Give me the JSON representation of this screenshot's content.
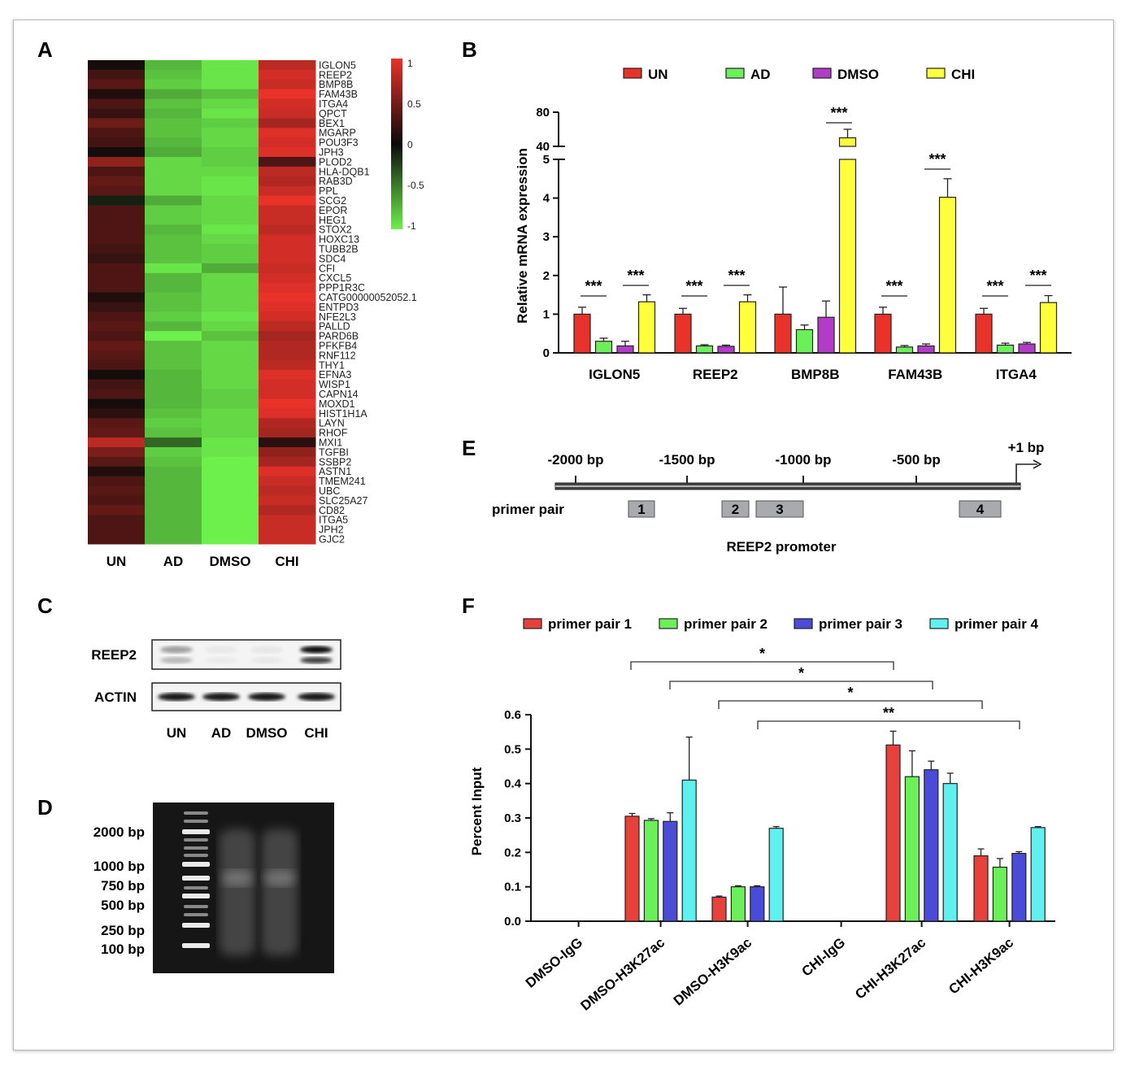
{
  "panels": {
    "A": {
      "letter": "A",
      "columns": [
        "UN",
        "AD",
        "DMSO",
        "CHI"
      ],
      "genes": [
        "IGLON5",
        "REEP2",
        "BMP8B",
        "FAM43B",
        "ITGA4",
        "QPCT",
        "BEX1",
        "MGARP",
        "POU3F3",
        "JPH3",
        "PLOD2",
        "HLA-DQB1",
        "RAB3D",
        "PPL",
        "SCG2",
        "EPOR",
        "HEG1",
        "STOX2",
        "HOXC13",
        "TUBB2B",
        "SDC4",
        "CFI",
        "CXCL5",
        "PPP1R3C",
        "CATG00000052052.1",
        "ENTPD3",
        "NFE2L3",
        "PALLD",
        "PARD6B",
        "PFKFB4",
        "RNF112",
        "THY1",
        "EFNA3",
        "WISP1",
        "CAPN14",
        "MOXD1",
        "HIST1H1A",
        "LAYN",
        "RHOF",
        "MXI1",
        "TGFBI",
        "SSBP2",
        "ASTN1",
        "TMEM241",
        "UBC",
        "SLC25A27",
        "CD82",
        "ITGA5",
        "JPH2",
        "GJC2"
      ],
      "colorbar_ticks": [
        "1",
        "0.5",
        "0",
        "-0.5",
        "-1"
      ],
      "colors": {
        "high": "#e8322a",
        "mid": "#0a0a0a",
        "low": "#6ef04c"
      }
    },
    "B": {
      "letter": "B",
      "significance": "***"
    },
    "C": {
      "letter": "C",
      "rows": [
        "REEP2",
        "ACTIN"
      ],
      "lanes": [
        "UN",
        "AD",
        "DMSO",
        "CHI"
      ]
    },
    "D": {
      "letter": "D",
      "ladder": [
        "2000 bp",
        "1000 bp",
        "750 bp",
        "500 bp",
        "250 bp",
        "100 bp"
      ]
    },
    "E": {
      "letter": "E",
      "positions": [
        "-2000 bp",
        "-1500 bp",
        "-1000 bp",
        "-500 bp"
      ],
      "tss": "+1 bp",
      "primer_label": "primer pair",
      "primers": [
        "1",
        "2",
        "3",
        "4"
      ],
      "caption": "REEP2 promoter"
    },
    "F": {
      "letter": "F",
      "brackets": [
        "*",
        "*",
        "*",
        "**"
      ]
    }
  },
  "chart_data": [
    {
      "type": "heatmap",
      "panel": "A",
      "x": [
        "UN",
        "AD",
        "DMSO",
        "CHI"
      ],
      "y": [
        "IGLON5",
        "REEP2",
        "BMP8B",
        "FAM43B",
        "ITGA4",
        "QPCT",
        "BEX1",
        "MGARP",
        "POU3F3",
        "JPH3",
        "PLOD2",
        "HLA-DQB1",
        "RAB3D",
        "PPL",
        "SCG2",
        "EPOR",
        "HEG1",
        "STOX2",
        "HOXC13",
        "TUBB2B",
        "SDC4",
        "CFI",
        "CXCL5",
        "PPP1R3C",
        "CATG00000052052.1",
        "ENTPD3",
        "NFE2L3",
        "PALLD",
        "PARD6B",
        "PFKFB4",
        "RNF112",
        "THY1",
        "EFNA3",
        "WISP1",
        "CAPN14",
        "MOXD1",
        "HIST1H1A",
        "LAYN",
        "RHOF",
        "MXI1",
        "TGFBI",
        "SSBP2",
        "ASTN1",
        "TMEM241",
        "UBC",
        "SLC25A27",
        "CD82",
        "ITGA5",
        "JPH2",
        "GJC2"
      ],
      "values": [
        [
          0.05,
          -0.75,
          -0.95,
          0.8
        ],
        [
          0.25,
          -0.8,
          -0.95,
          0.9
        ],
        [
          0.35,
          -0.85,
          -0.95,
          0.85
        ],
        [
          0.1,
          -0.7,
          -0.8,
          1.0
        ],
        [
          0.3,
          -0.8,
          -0.9,
          0.9
        ],
        [
          0.2,
          -0.75,
          -0.95,
          0.85
        ],
        [
          0.45,
          -0.8,
          -0.85,
          0.7
        ],
        [
          0.3,
          -0.8,
          -0.9,
          0.95
        ],
        [
          0.25,
          -0.75,
          -0.9,
          0.9
        ],
        [
          0.05,
          -0.7,
          -0.85,
          0.95
        ],
        [
          0.6,
          -0.9,
          -0.85,
          0.3
        ],
        [
          0.3,
          -0.9,
          -0.9,
          0.8
        ],
        [
          0.4,
          -0.9,
          -0.95,
          0.75
        ],
        [
          0.35,
          -0.9,
          -0.95,
          0.85
        ],
        [
          -0.1,
          -0.7,
          -0.9,
          1.0
        ],
        [
          0.3,
          -0.85,
          -0.9,
          0.85
        ],
        [
          0.3,
          -0.85,
          -0.9,
          0.85
        ],
        [
          0.3,
          -0.75,
          -0.95,
          0.8
        ],
        [
          0.3,
          -0.8,
          -0.9,
          0.9
        ],
        [
          0.25,
          -0.8,
          -0.85,
          0.9
        ],
        [
          0.2,
          -0.8,
          -0.85,
          0.9
        ],
        [
          0.3,
          -0.95,
          -0.7,
          0.85
        ],
        [
          0.3,
          -0.75,
          -0.9,
          0.9
        ],
        [
          0.3,
          -0.75,
          -0.9,
          0.95
        ],
        [
          0.1,
          -0.8,
          -0.9,
          1.0
        ],
        [
          0.2,
          -0.8,
          -0.9,
          0.95
        ],
        [
          0.3,
          -0.85,
          -0.95,
          0.9
        ],
        [
          0.35,
          -0.75,
          -0.9,
          0.8
        ],
        [
          0.3,
          -1.0,
          -0.8,
          0.7
        ],
        [
          0.4,
          -0.8,
          -0.9,
          0.75
        ],
        [
          0.35,
          -0.8,
          -0.9,
          0.75
        ],
        [
          0.3,
          -0.8,
          -0.9,
          0.8
        ],
        [
          0.05,
          -0.75,
          -0.9,
          0.95
        ],
        [
          0.25,
          -0.75,
          -0.9,
          0.9
        ],
        [
          0.3,
          -0.75,
          -0.85,
          0.9
        ],
        [
          0.05,
          -0.75,
          -0.85,
          1.0
        ],
        [
          0.15,
          -0.8,
          -0.9,
          0.95
        ],
        [
          0.35,
          -0.85,
          -0.9,
          0.75
        ],
        [
          0.4,
          -0.8,
          -0.9,
          0.7
        ],
        [
          0.8,
          -0.4,
          -0.95,
          0.15
        ],
        [
          0.5,
          -0.85,
          -0.95,
          0.6
        ],
        [
          0.35,
          -0.8,
          -1.0,
          0.7
        ],
        [
          0.1,
          -0.75,
          -1.0,
          0.95
        ],
        [
          0.3,
          -0.75,
          -1.0,
          0.85
        ],
        [
          0.35,
          -0.75,
          -1.0,
          0.8
        ],
        [
          0.3,
          -0.75,
          -1.0,
          0.85
        ],
        [
          0.4,
          -0.75,
          -1.0,
          0.75
        ],
        [
          0.3,
          -0.75,
          -1.0,
          0.85
        ],
        [
          0.3,
          -0.75,
          -1.0,
          0.85
        ],
        [
          0.3,
          -0.75,
          -1.0,
          0.85
        ]
      ],
      "colorbar": [
        -1,
        1
      ]
    },
    {
      "type": "bar",
      "panel": "B",
      "categories": [
        "IGLON5",
        "REEP2",
        "BMP8B",
        "FAM43B",
        "ITGA4"
      ],
      "series": [
        {
          "name": "UN",
          "color": "#e8322a",
          "values": [
            1.0,
            1.0,
            1.0,
            1.0,
            1.0
          ],
          "errors": [
            0.18,
            0.15,
            0.7,
            0.18,
            0.15
          ]
        },
        {
          "name": "AD",
          "color": "#6cf05a",
          "values": [
            0.3,
            0.18,
            0.6,
            0.15,
            0.2
          ],
          "errors": [
            0.08,
            0.03,
            0.12,
            0.04,
            0.05
          ]
        },
        {
          "name": "DMSO",
          "color": "#b23cc8",
          "values": [
            0.18,
            0.17,
            0.92,
            0.18,
            0.23
          ],
          "errors": [
            0.12,
            0.03,
            0.42,
            0.05,
            0.04
          ]
        },
        {
          "name": "CHI",
          "color": "#ffff3c",
          "values": [
            1.32,
            1.32,
            50,
            4.02,
            1.3
          ],
          "errors": [
            0.18,
            0.18,
            10,
            0.48,
            0.18
          ]
        }
      ],
      "ylabel": "Relative mRNA expression",
      "y_lower_ticks": [
        0,
        1,
        2,
        3,
        4,
        5
      ],
      "y_upper_ticks": [
        40,
        80
      ],
      "axis_break": [
        5,
        40
      ],
      "significance": [
        {
          "category": "IGLON5",
          "pair": [
            "UN",
            "AD"
          ],
          "label": "***"
        },
        {
          "category": "IGLON5",
          "pair": [
            "DMSO",
            "CHI"
          ],
          "label": "***"
        },
        {
          "category": "REEP2",
          "pair": [
            "UN",
            "AD"
          ],
          "label": "***"
        },
        {
          "category": "REEP2",
          "pair": [
            "DMSO",
            "CHI"
          ],
          "label": "***"
        },
        {
          "category": "BMP8B",
          "pair": [
            "DMSO",
            "CHI"
          ],
          "label": "***"
        },
        {
          "category": "FAM43B",
          "pair": [
            "UN",
            "AD"
          ],
          "label": "***"
        },
        {
          "category": "FAM43B",
          "pair": [
            "DMSO",
            "CHI"
          ],
          "label": "***"
        },
        {
          "category": "ITGA4",
          "pair": [
            "UN",
            "AD"
          ],
          "label": "***"
        },
        {
          "category": "ITGA4",
          "pair": [
            "DMSO",
            "CHI"
          ],
          "label": "***"
        }
      ],
      "legend": "top"
    },
    {
      "type": "bar",
      "panel": "F",
      "categories": [
        "DMSO-IgG",
        "DMSO-H3K27ac",
        "DMSO-H3K9ac",
        "CHI-IgG",
        "CHI-H3K27ac",
        "CHI-H3K9ac"
      ],
      "series": [
        {
          "name": "primer pair 1",
          "color": "#e8403a",
          "values": [
            0,
            0.305,
            0.07,
            0,
            0.512,
            0.19
          ],
          "errors": [
            0,
            0.008,
            0.003,
            0,
            0.04,
            0.02
          ]
        },
        {
          "name": "primer pair 2",
          "color": "#6cf05a",
          "values": [
            0,
            0.293,
            0.1,
            0,
            0.42,
            0.157
          ],
          "errors": [
            0,
            0.005,
            0.003,
            0,
            0.075,
            0.025
          ]
        },
        {
          "name": "primer pair 3",
          "color": "#4a4cd8",
          "values": [
            0,
            0.29,
            0.1,
            0,
            0.44,
            0.197
          ],
          "errors": [
            0,
            0.025,
            0.003,
            0,
            0.025,
            0.005
          ]
        },
        {
          "name": "primer pair 4",
          "color": "#5ff0f0",
          "values": [
            0,
            0.41,
            0.27,
            0,
            0.4,
            0.272
          ],
          "errors": [
            0,
            0.125,
            0.005,
            0,
            0.03,
            0.003
          ]
        }
      ],
      "ylabel": "Percent Input",
      "ylim": [
        0,
        0.6
      ],
      "yticks": [
        0.0,
        0.1,
        0.2,
        0.3,
        0.4,
        0.5,
        0.6
      ],
      "yticklabels": [
        "0.0",
        "0.1",
        "0.2",
        "0.3",
        "0.4",
        "0.5",
        "0.6"
      ],
      "significance": [
        {
          "series": "primer pair 1",
          "from": "DMSO-H3K27ac",
          "to": "CHI-H3K27ac",
          "label": "*"
        },
        {
          "series": "primer pair 2",
          "from": "DMSO-H3K27ac",
          "to": "CHI-H3K27ac",
          "label": "*"
        },
        {
          "series": "primer pair 1",
          "from": "DMSO-H3K9ac",
          "to": "CHI-H3K9ac",
          "label": "*"
        },
        {
          "series": "primer pair 2",
          "from": "DMSO-H3K9ac",
          "to": "CHI-H3K9ac",
          "label": "**"
        }
      ],
      "legend": "top"
    }
  ]
}
